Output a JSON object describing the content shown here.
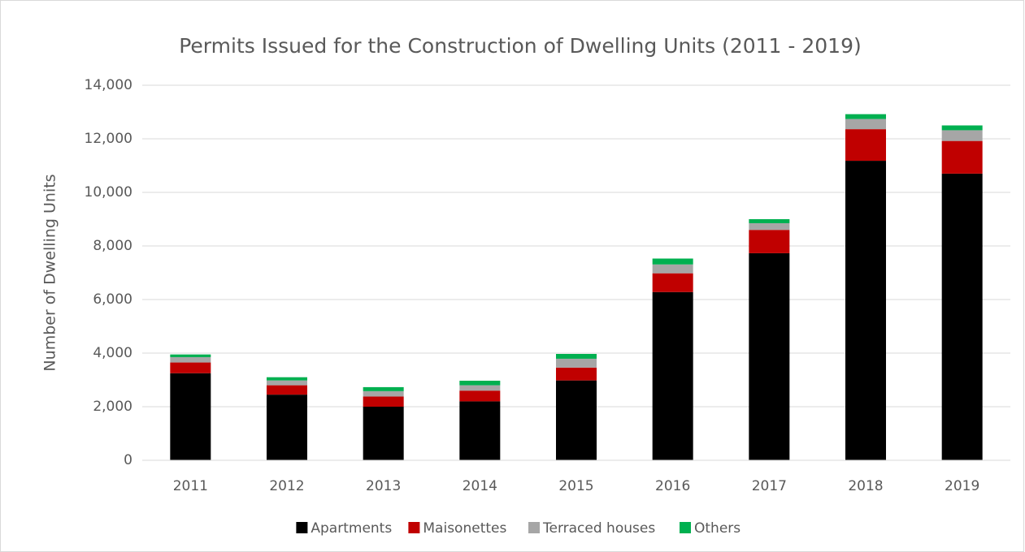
{
  "chart_data": {
    "type": "stacked_bar",
    "title": "Permits Issued for the Construction of Dwelling Units (2011 - 2019)",
    "y_label": "Number of Dwelling Units",
    "categories": [
      "2011",
      "2012",
      "2013",
      "2014",
      "2015",
      "2016",
      "2017",
      "2018",
      "2019"
    ],
    "series": [
      {
        "name": "Apartments",
        "color": "#000000",
        "values": [
          3250,
          2450,
          2000,
          2200,
          2980,
          6280,
          7730,
          11180,
          10700
        ]
      },
      {
        "name": "Maisonettes",
        "color": "#c00000",
        "values": [
          400,
          350,
          380,
          400,
          480,
          700,
          870,
          1180,
          1220
        ]
      },
      {
        "name": "Terraced houses",
        "color": "#a6a6a6",
        "values": [
          200,
          180,
          200,
          200,
          330,
          330,
          250,
          380,
          400
        ]
      },
      {
        "name": "Others",
        "color": "#00b050",
        "values": [
          100,
          120,
          150,
          170,
          180,
          220,
          150,
          180,
          180
        ]
      }
    ],
    "ylim": [
      0,
      14000
    ],
    "yticks": [
      0,
      {
        "value": 2000,
        "label": "2,000"
      },
      {
        "value": 4000,
        "label": "4,000"
      },
      {
        "value": 6000,
        "label": "6,000"
      },
      {
        "value": 8000,
        "label": "8,000"
      },
      {
        "value": 10000,
        "label": "10,000"
      },
      {
        "value": 12000,
        "label": "12,000"
      },
      {
        "value": 14000,
        "label": "14,000"
      }
    ],
    "grid": true,
    "legend": "bottom"
  }
}
